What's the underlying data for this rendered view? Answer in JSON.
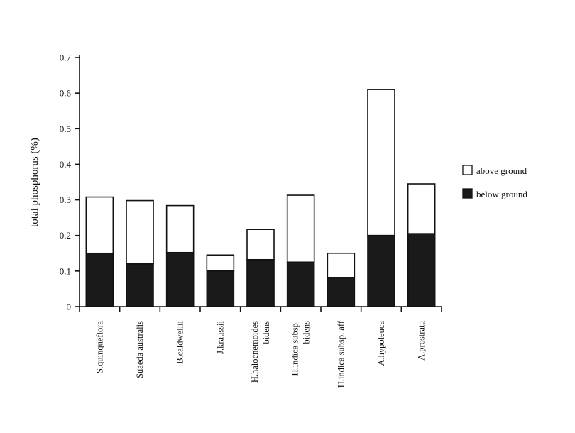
{
  "chart_data": {
    "type": "bar",
    "stacked": true,
    "title": "",
    "xlabel": "",
    "ylabel": "total phosphorus (%)",
    "ylim": [
      0,
      0.7
    ],
    "yticks": [
      "0",
      "0.1",
      "0.2",
      "0.3",
      "0.4",
      "0.5",
      "0.6",
      "0.7"
    ],
    "grid": false,
    "legend_position": "right",
    "categories": [
      [
        "S.quinqueflora"
      ],
      [
        "Suaeda australis"
      ],
      [
        "B.caldwellii"
      ],
      [
        "J.kraussii"
      ],
      [
        "H.halocnemoides",
        "bidens"
      ],
      [
        "H.indica subsp.",
        "bidens"
      ],
      [
        "H.indica subsp. aff"
      ],
      [
        "A.hypoleuca"
      ],
      [
        "A.prostrata"
      ]
    ],
    "series": [
      {
        "name": "below ground",
        "color": "#1a1a1a",
        "values": [
          0.15,
          0.12,
          0.152,
          0.1,
          0.132,
          0.125,
          0.082,
          0.2,
          0.205
        ]
      },
      {
        "name": "above ground",
        "color": "#ffffff",
        "values": [
          0.158,
          0.178,
          0.132,
          0.045,
          0.085,
          0.188,
          0.068,
          0.41,
          0.14
        ]
      }
    ]
  }
}
